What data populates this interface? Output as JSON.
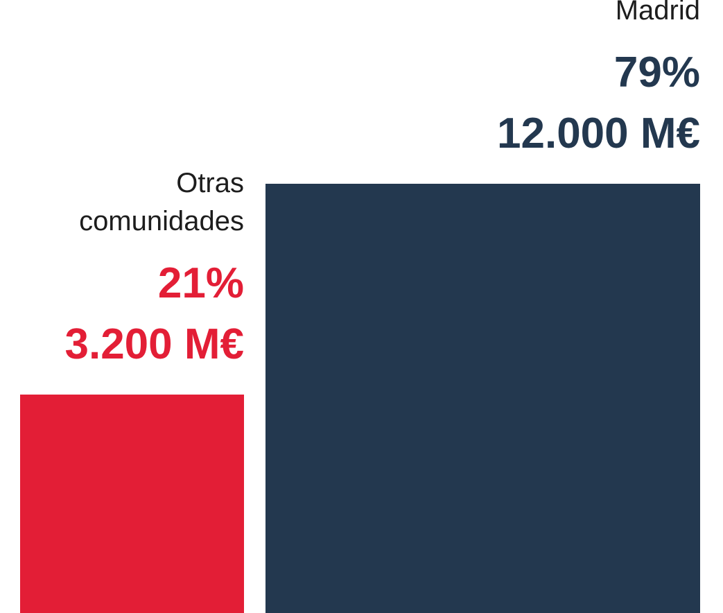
{
  "chart_data": {
    "type": "square-area",
    "categories": [
      "Otras comunidades",
      "Madrid"
    ],
    "values": [
      21,
      79
    ],
    "value_labels": [
      "21%",
      "79%"
    ],
    "amounts": [
      3200,
      12000
    ],
    "amount_labels": [
      "3.200 M€",
      "12.000 M€"
    ],
    "colors": [
      "#e31e36",
      "#23384f"
    ]
  }
}
